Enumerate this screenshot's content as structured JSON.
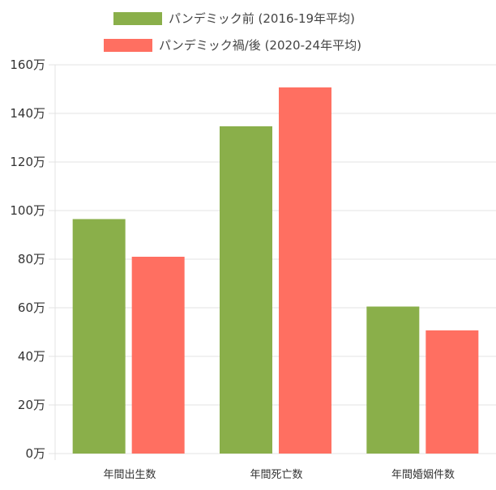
{
  "chart_data": {
    "type": "bar",
    "categories": [
      "年間出生数",
      "年間死亡数",
      "年間婚姻件数"
    ],
    "series": [
      {
        "name": "パンデミック前 (2016-19年平均)",
        "color": "#8aaf4a",
        "values": [
          96.5,
          134.7,
          60.5
        ]
      },
      {
        "name": "パンデミック禍/後 (2020-24年平均)",
        "color": "#ff6f61",
        "values": [
          81.0,
          150.7,
          50.7
        ]
      }
    ],
    "ylim": [
      0,
      160
    ],
    "yticks": [
      "0万",
      "20万",
      "40万",
      "60万",
      "80万",
      "100万",
      "120万",
      "140万",
      "160万"
    ],
    "grid": true,
    "legend_position": "top"
  }
}
